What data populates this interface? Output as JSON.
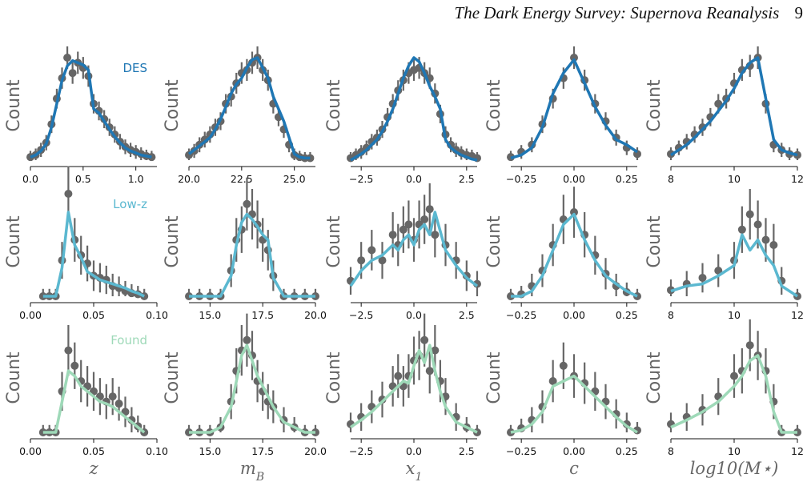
{
  "header": {
    "title": "The Dark Energy Survey: Supernova Reanalysis",
    "page_number": "9"
  },
  "colors": {
    "DES": "#1f77b4",
    "Low-z": "#5bb8d0",
    "Found": "#9ed9b8",
    "points": "#666666",
    "axis": "#111111"
  },
  "chart_data": {
    "type": "line",
    "layout": "3x5 grid of histograms: model line per survey with data points and error bars",
    "ylabel": "Count",
    "columns": [
      {
        "name": "z",
        "xlabel": "z",
        "sub": "",
        "ticks_by_row": [
          [
            "0.0",
            "0.5",
            "1.0"
          ],
          [
            "0.00",
            "0.05",
            "0.10"
          ],
          [
            "0.00",
            "0.05",
            "0.10"
          ]
        ]
      },
      {
        "name": "mB",
        "xlabel": "m",
        "sub": "B",
        "ticks_by_row": [
          [
            "20.0",
            "22.5",
            "25.0"
          ],
          [
            "15.0",
            "17.5",
            "20.0"
          ],
          [
            "15.0",
            "17.5",
            "20.0"
          ]
        ]
      },
      {
        "name": "x1",
        "xlabel": "x",
        "sub": "1",
        "ticks_by_row": [
          [
            "−2.5",
            "0.0",
            "2.5"
          ],
          [
            "−2.5",
            "0.0",
            "2.5"
          ],
          [
            "−2.5",
            "0.0",
            "2.5"
          ]
        ]
      },
      {
        "name": "c",
        "xlabel": "c",
        "sub": "",
        "ticks_by_row": [
          [
            "−0.25",
            "0.00",
            "0.25"
          ],
          [
            "−0.25",
            "0.00",
            "0.25"
          ],
          [
            "−0.25",
            "0.00",
            "0.25"
          ]
        ]
      },
      {
        "name": "logM",
        "xlabel": "log10(M⋆)",
        "sub": "",
        "ticks_by_row": [
          [
            "8",
            "10",
            "12"
          ],
          [
            "8",
            "10",
            "12"
          ],
          [
            "8",
            "10",
            "12"
          ]
        ]
      }
    ],
    "series": [
      {
        "name": "DES",
        "panels": [
          {
            "x": [
              0.0,
              0.05,
              0.1,
              0.15,
              0.2,
              0.25,
              0.3,
              0.35,
              0.4,
              0.45,
              0.5,
              0.55,
              0.6,
              0.65,
              0.7,
              0.75,
              0.8,
              0.85,
              0.9,
              0.95,
              1.0,
              1.05,
              1.1,
              1.15
            ],
            "model": [
              0.03,
              0.05,
              0.09,
              0.16,
              0.32,
              0.55,
              0.78,
              0.92,
              0.97,
              0.95,
              0.93,
              0.88,
              0.5,
              0.46,
              0.38,
              0.3,
              0.23,
              0.17,
              0.12,
              0.09,
              0.07,
              0.05,
              0.04,
              0.03
            ],
            "points": [
              0.03,
              0.05,
              0.1,
              0.17,
              0.35,
              0.6,
              0.8,
              1.0,
              0.85,
              0.95,
              0.9,
              0.82,
              0.55,
              0.48,
              0.4,
              0.32,
              0.25,
              0.18,
              0.13,
              0.1,
              0.08,
              0.06,
              0.04,
              0.03
            ]
          },
          {
            "x": [
              20.0,
              20.25,
              20.5,
              20.75,
              21.0,
              21.25,
              21.5,
              21.75,
              22.0,
              22.25,
              22.5,
              22.75,
              23.0,
              23.25,
              23.5,
              23.75,
              24.0,
              24.25,
              24.5,
              24.75,
              25.0,
              25.25,
              25.5,
              25.75
            ],
            "model": [
              0.06,
              0.1,
              0.14,
              0.18,
              0.22,
              0.3,
              0.4,
              0.52,
              0.65,
              0.74,
              0.8,
              0.9,
              0.98,
              1.0,
              0.9,
              0.8,
              0.62,
              0.5,
              0.38,
              0.22,
              0.06,
              0.03,
              0.02,
              0.02
            ],
            "points": [
              0.05,
              0.09,
              0.15,
              0.2,
              0.25,
              0.32,
              0.38,
              0.55,
              0.62,
              0.75,
              0.85,
              0.88,
              0.95,
              1.0,
              0.88,
              0.78,
              0.55,
              0.42,
              0.3,
              0.15,
              0.05,
              0.03,
              0.02,
              0.02
            ]
          },
          {
            "x": [
              -3.0,
              -2.75,
              -2.5,
              -2.25,
              -2.0,
              -1.75,
              -1.5,
              -1.25,
              -1.0,
              -0.75,
              -0.5,
              -0.25,
              0.0,
              0.25,
              0.5,
              0.75,
              1.0,
              1.25,
              1.5,
              1.75,
              2.0,
              2.25,
              2.5,
              2.75,
              3.0
            ],
            "model": [
              0.0,
              0.03,
              0.06,
              0.1,
              0.15,
              0.2,
              0.28,
              0.38,
              0.5,
              0.65,
              0.8,
              0.92,
              1.0,
              0.96,
              0.85,
              0.72,
              0.62,
              0.5,
              0.2,
              0.12,
              0.08,
              0.05,
              0.03,
              0.01,
              0.0
            ],
            "points": [
              0.02,
              0.05,
              0.08,
              0.12,
              0.18,
              0.22,
              0.3,
              0.42,
              0.55,
              0.68,
              0.78,
              0.85,
              0.88,
              0.9,
              0.85,
              0.8,
              0.65,
              0.45,
              0.25,
              0.15,
              0.1,
              0.07,
              0.05,
              0.04,
              0.02
            ]
          },
          {
            "x": [
              -0.3,
              -0.25,
              -0.2,
              -0.15,
              -0.1,
              -0.05,
              0.0,
              0.05,
              0.1,
              0.15,
              0.2,
              0.25,
              0.3
            ],
            "model": [
              0.02,
              0.05,
              0.12,
              0.32,
              0.65,
              0.85,
              0.98,
              0.75,
              0.52,
              0.34,
              0.2,
              0.15,
              0.08
            ],
            "points": [
              0.03,
              0.08,
              0.15,
              0.35,
              0.6,
              0.8,
              1.0,
              0.78,
              0.55,
              0.38,
              0.22,
              0.12,
              0.06
            ]
          },
          {
            "x": [
              8.0,
              8.25,
              8.5,
              8.75,
              9.0,
              9.25,
              9.5,
              9.75,
              10.0,
              10.25,
              10.5,
              10.75,
              11.0,
              11.25,
              11.5,
              11.75,
              12.0
            ],
            "model": [
              0.05,
              0.1,
              0.15,
              0.22,
              0.3,
              0.38,
              0.48,
              0.58,
              0.7,
              0.85,
              0.95,
              1.0,
              0.6,
              0.2,
              0.1,
              0.07,
              0.05
            ],
            "points": [
              0.06,
              0.12,
              0.18,
              0.25,
              0.32,
              0.42,
              0.55,
              0.6,
              0.75,
              0.88,
              0.92,
              1.0,
              0.55,
              0.15,
              0.1,
              0.06,
              0.05
            ]
          }
        ]
      },
      {
        "name": "Low-z",
        "panels": [
          {
            "x": [
              0.01,
              0.015,
              0.02,
              0.025,
              0.03,
              0.035,
              0.04,
              0.045,
              0.05,
              0.055,
              0.06,
              0.065,
              0.07,
              0.075,
              0.08,
              0.085,
              0.09
            ],
            "model": [
              0.0,
              0.0,
              0.0,
              0.28,
              0.82,
              0.5,
              0.38,
              0.24,
              0.2,
              0.16,
              0.14,
              0.12,
              0.1,
              0.08,
              0.05,
              0.03,
              0.0
            ],
            "points": [
              0.0,
              0.0,
              0.0,
              0.35,
              1.0,
              0.55,
              0.4,
              0.32,
              0.2,
              0.18,
              0.16,
              0.1,
              0.08,
              0.05,
              0.03,
              0.02,
              0.0
            ]
          },
          {
            "x": [
              14.0,
              14.5,
              15.0,
              15.5,
              16.0,
              16.25,
              16.5,
              16.75,
              17.0,
              17.25,
              17.5,
              17.75,
              18.0,
              18.5,
              19.0,
              19.5,
              20.0
            ],
            "model": [
              0.0,
              0.0,
              0.0,
              0.0,
              0.2,
              0.5,
              0.72,
              0.8,
              0.75,
              0.68,
              0.6,
              0.55,
              0.18,
              0.0,
              0.0,
              0.0,
              0.0
            ],
            "points": [
              0.0,
              0.0,
              0.0,
              0.0,
              0.25,
              0.55,
              0.65,
              0.9,
              0.8,
              0.7,
              0.55,
              0.45,
              0.2,
              0.0,
              0.0,
              0.0,
              0.0
            ]
          },
          {
            "x": [
              -3.0,
              -2.5,
              -2.0,
              -1.5,
              -1.0,
              -0.75,
              -0.5,
              -0.25,
              0.0,
              0.25,
              0.5,
              0.75,
              1.0,
              1.5,
              2.0,
              2.5,
              3.0
            ],
            "model": [
              0.1,
              0.25,
              0.35,
              0.4,
              0.5,
              0.45,
              0.55,
              0.6,
              0.5,
              0.65,
              0.7,
              0.6,
              0.82,
              0.45,
              0.3,
              0.18,
              0.1
            ],
            "points": [
              0.15,
              0.35,
              0.45,
              0.35,
              0.6,
              0.5,
              0.65,
              0.7,
              0.55,
              0.7,
              0.75,
              0.85,
              0.6,
              0.5,
              0.35,
              0.2,
              0.12
            ]
          },
          {
            "x": [
              -0.3,
              -0.25,
              -0.2,
              -0.15,
              -0.1,
              -0.05,
              0.0,
              0.05,
              0.1,
              0.15,
              0.2,
              0.25,
              0.3
            ],
            "model": [
              0.0,
              0.0,
              0.05,
              0.2,
              0.45,
              0.7,
              0.8,
              0.55,
              0.35,
              0.2,
              0.12,
              0.05,
              0.0
            ],
            "points": [
              0.0,
              0.02,
              0.1,
              0.25,
              0.5,
              0.75,
              0.82,
              0.6,
              0.4,
              0.22,
              0.1,
              0.04,
              0.0
            ]
          },
          {
            "x": [
              8.0,
              8.5,
              9.0,
              9.5,
              10.0,
              10.25,
              10.5,
              10.75,
              11.0,
              11.25,
              11.5,
              12.0
            ],
            "model": [
              0.05,
              0.1,
              0.12,
              0.2,
              0.3,
              0.6,
              0.45,
              0.55,
              0.4,
              0.3,
              0.1,
              0.0
            ],
            "points": [
              0.06,
              0.12,
              0.18,
              0.25,
              0.35,
              0.65,
              0.8,
              0.7,
              0.55,
              0.5,
              0.15,
              0.0
            ]
          }
        ]
      },
      {
        "name": "Found",
        "panels": [
          {
            "x": [
              0.01,
              0.015,
              0.02,
              0.025,
              0.03,
              0.035,
              0.04,
              0.045,
              0.05,
              0.055,
              0.06,
              0.065,
              0.07,
              0.075,
              0.08,
              0.085,
              0.09
            ],
            "model": [
              0.0,
              0.0,
              0.0,
              0.3,
              0.6,
              0.55,
              0.45,
              0.4,
              0.35,
              0.3,
              0.28,
              0.25,
              0.2,
              0.15,
              0.1,
              0.05,
              0.0
            ],
            "points": [
              0.0,
              0.0,
              0.0,
              0.4,
              0.8,
              0.65,
              0.5,
              0.45,
              0.4,
              0.35,
              0.3,
              0.35,
              0.28,
              0.2,
              0.12,
              0.06,
              0.0
            ]
          },
          {
            "x": [
              14.0,
              14.5,
              15.0,
              15.5,
              16.0,
              16.25,
              16.5,
              16.75,
              17.0,
              17.25,
              17.5,
              17.75,
              18.0,
              18.5,
              19.0,
              19.5,
              20.0
            ],
            "model": [
              0.0,
              0.0,
              0.0,
              0.05,
              0.25,
              0.5,
              0.75,
              0.85,
              0.7,
              0.55,
              0.45,
              0.35,
              0.25,
              0.1,
              0.05,
              0.0,
              0.0
            ],
            "points": [
              0.0,
              0.0,
              0.0,
              0.05,
              0.3,
              0.6,
              0.8,
              0.9,
              0.75,
              0.5,
              0.4,
              0.3,
              0.25,
              0.12,
              0.05,
              0.0,
              0.0
            ]
          },
          {
            "x": [
              -3.0,
              -2.5,
              -2.0,
              -1.5,
              -1.0,
              -0.75,
              -0.5,
              -0.25,
              0.0,
              0.25,
              0.5,
              0.75,
              1.0,
              1.25,
              1.5,
              2.0,
              2.5,
              3.0
            ],
            "model": [
              0.05,
              0.12,
              0.2,
              0.3,
              0.4,
              0.45,
              0.5,
              0.48,
              0.65,
              0.8,
              0.68,
              0.85,
              0.6,
              0.4,
              0.25,
              0.1,
              0.05,
              0.0
            ],
            "points": [
              0.08,
              0.15,
              0.25,
              0.32,
              0.45,
              0.55,
              0.45,
              0.55,
              0.7,
              0.75,
              0.9,
              0.6,
              0.8,
              0.5,
              0.35,
              0.15,
              0.05,
              0.0
            ]
          },
          {
            "x": [
              -0.3,
              -0.25,
              -0.2,
              -0.15,
              -0.1,
              -0.05,
              0.0,
              0.05,
              0.1,
              0.15,
              0.2,
              0.25,
              0.3
            ],
            "model": [
              0.0,
              0.02,
              0.08,
              0.2,
              0.45,
              0.5,
              0.55,
              0.45,
              0.35,
              0.25,
              0.15,
              0.06,
              0.0
            ],
            "points": [
              0.0,
              0.04,
              0.12,
              0.25,
              0.5,
              0.65,
              0.55,
              0.48,
              0.4,
              0.3,
              0.18,
              0.08,
              0.02
            ]
          },
          {
            "x": [
              8.0,
              8.5,
              9.0,
              9.5,
              10.0,
              10.25,
              10.5,
              10.75,
              11.0,
              11.25,
              11.5,
              12.0
            ],
            "model": [
              0.05,
              0.12,
              0.2,
              0.3,
              0.45,
              0.55,
              0.7,
              0.75,
              0.55,
              0.2,
              0.0,
              0.0
            ],
            "points": [
              0.08,
              0.15,
              0.22,
              0.35,
              0.55,
              0.6,
              0.85,
              0.75,
              0.6,
              0.3,
              0.0,
              0.0
            ]
          }
        ]
      }
    ]
  }
}
